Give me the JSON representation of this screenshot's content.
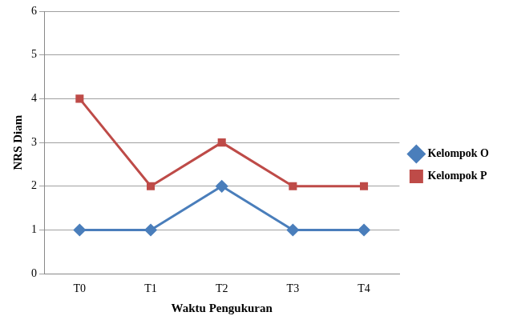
{
  "chart_data": {
    "type": "line",
    "x_label": "Waktu Pengukuran",
    "y_label": "NRS Diam",
    "categories": [
      "T0",
      "T1",
      "T2",
      "T3",
      "T4"
    ],
    "series": [
      {
        "name": "Kelompok O",
        "color": "#4a7ebb",
        "marker": "diamond",
        "values": [
          1,
          1,
          2,
          1,
          1
        ]
      },
      {
        "name": "Kelompok P",
        "color": "#be4b48",
        "marker": "square",
        "values": [
          4,
          2,
          3,
          2,
          2
        ]
      }
    ],
    "ylim": [
      0,
      6
    ],
    "yticks": [
      0,
      1,
      2,
      3,
      4,
      5,
      6
    ],
    "grid": true,
    "legend": "right"
  }
}
